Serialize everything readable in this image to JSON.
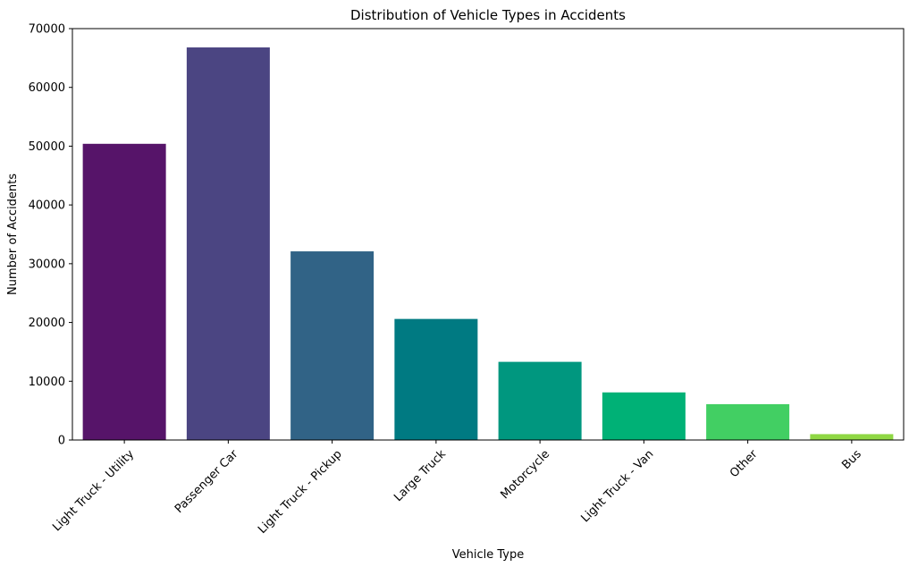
{
  "chart_data": {
    "type": "bar",
    "title": "Distribution of Vehicle Types in Accidents",
    "xlabel": "Vehicle Type",
    "ylabel": "Number of Accidents",
    "categories": [
      "Light Truck - Utility",
      "Passenger Car",
      "Light Truck - Pickup",
      "Large Truck",
      "Motorcycle",
      "Light Truck - Van",
      "Other",
      "Bus"
    ],
    "values": [
      50400,
      66800,
      32100,
      20600,
      13300,
      8100,
      6100,
      1000
    ],
    "colors": [
      "#561469",
      "#4b4582",
      "#316386",
      "#007a82",
      "#00977f",
      "#00b176",
      "#42cf63",
      "#8fd744"
    ],
    "ylim": [
      0,
      70000
    ],
    "yticks": [
      0,
      10000,
      20000,
      30000,
      40000,
      50000,
      60000,
      70000
    ],
    "grid": false,
    "legend": "none"
  }
}
